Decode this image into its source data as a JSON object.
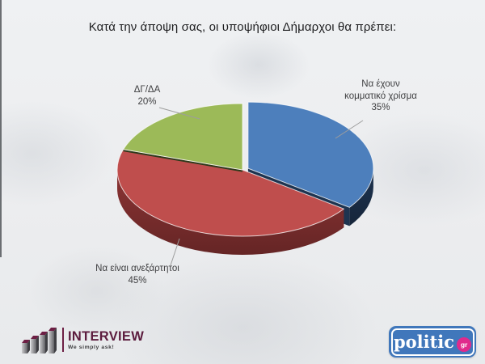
{
  "title": "Κατά την άποψη σας, οι υποψήφιοι Δήμαρχοι θα πρέπει:",
  "chart_data": {
    "type": "pie",
    "style": "3d-exploded",
    "title": "Κατά την άποψη σας, οι υποψήφιοι Δήμαρχοι θα πρέπει:",
    "start_angle_deg": 0,
    "direction": "clockwise",
    "labels_format": "percent",
    "legend_position": "none",
    "slices": [
      {
        "label": "Να έχουν κομματικό χρίσμα",
        "value": 35,
        "pct_label": "35%",
        "color": "#4d7fbc",
        "side_color": "#1e3450",
        "exploded": true
      },
      {
        "label": "Να είναι ανεξάρτητοι",
        "value": 45,
        "pct_label": "45%",
        "color": "#bf4e4d",
        "side_color": "#8c3434",
        "exploded": false
      },
      {
        "label": "ΔΓ/ΔΑ",
        "value": 20,
        "pct_label": "20%",
        "color": "#9cba58",
        "side_color": "#6f8a3c",
        "exploded": false
      }
    ]
  },
  "footer": {
    "interview": {
      "name": "INTERVIEW",
      "tagline": "We simply ask!",
      "icon": "bar-chart-icon",
      "brand_color": "#5c1c3e"
    },
    "politic": {
      "name": "politic",
      "tld": "gr",
      "box_color": "#4077bb",
      "badge_color": "#e02a8c"
    }
  }
}
